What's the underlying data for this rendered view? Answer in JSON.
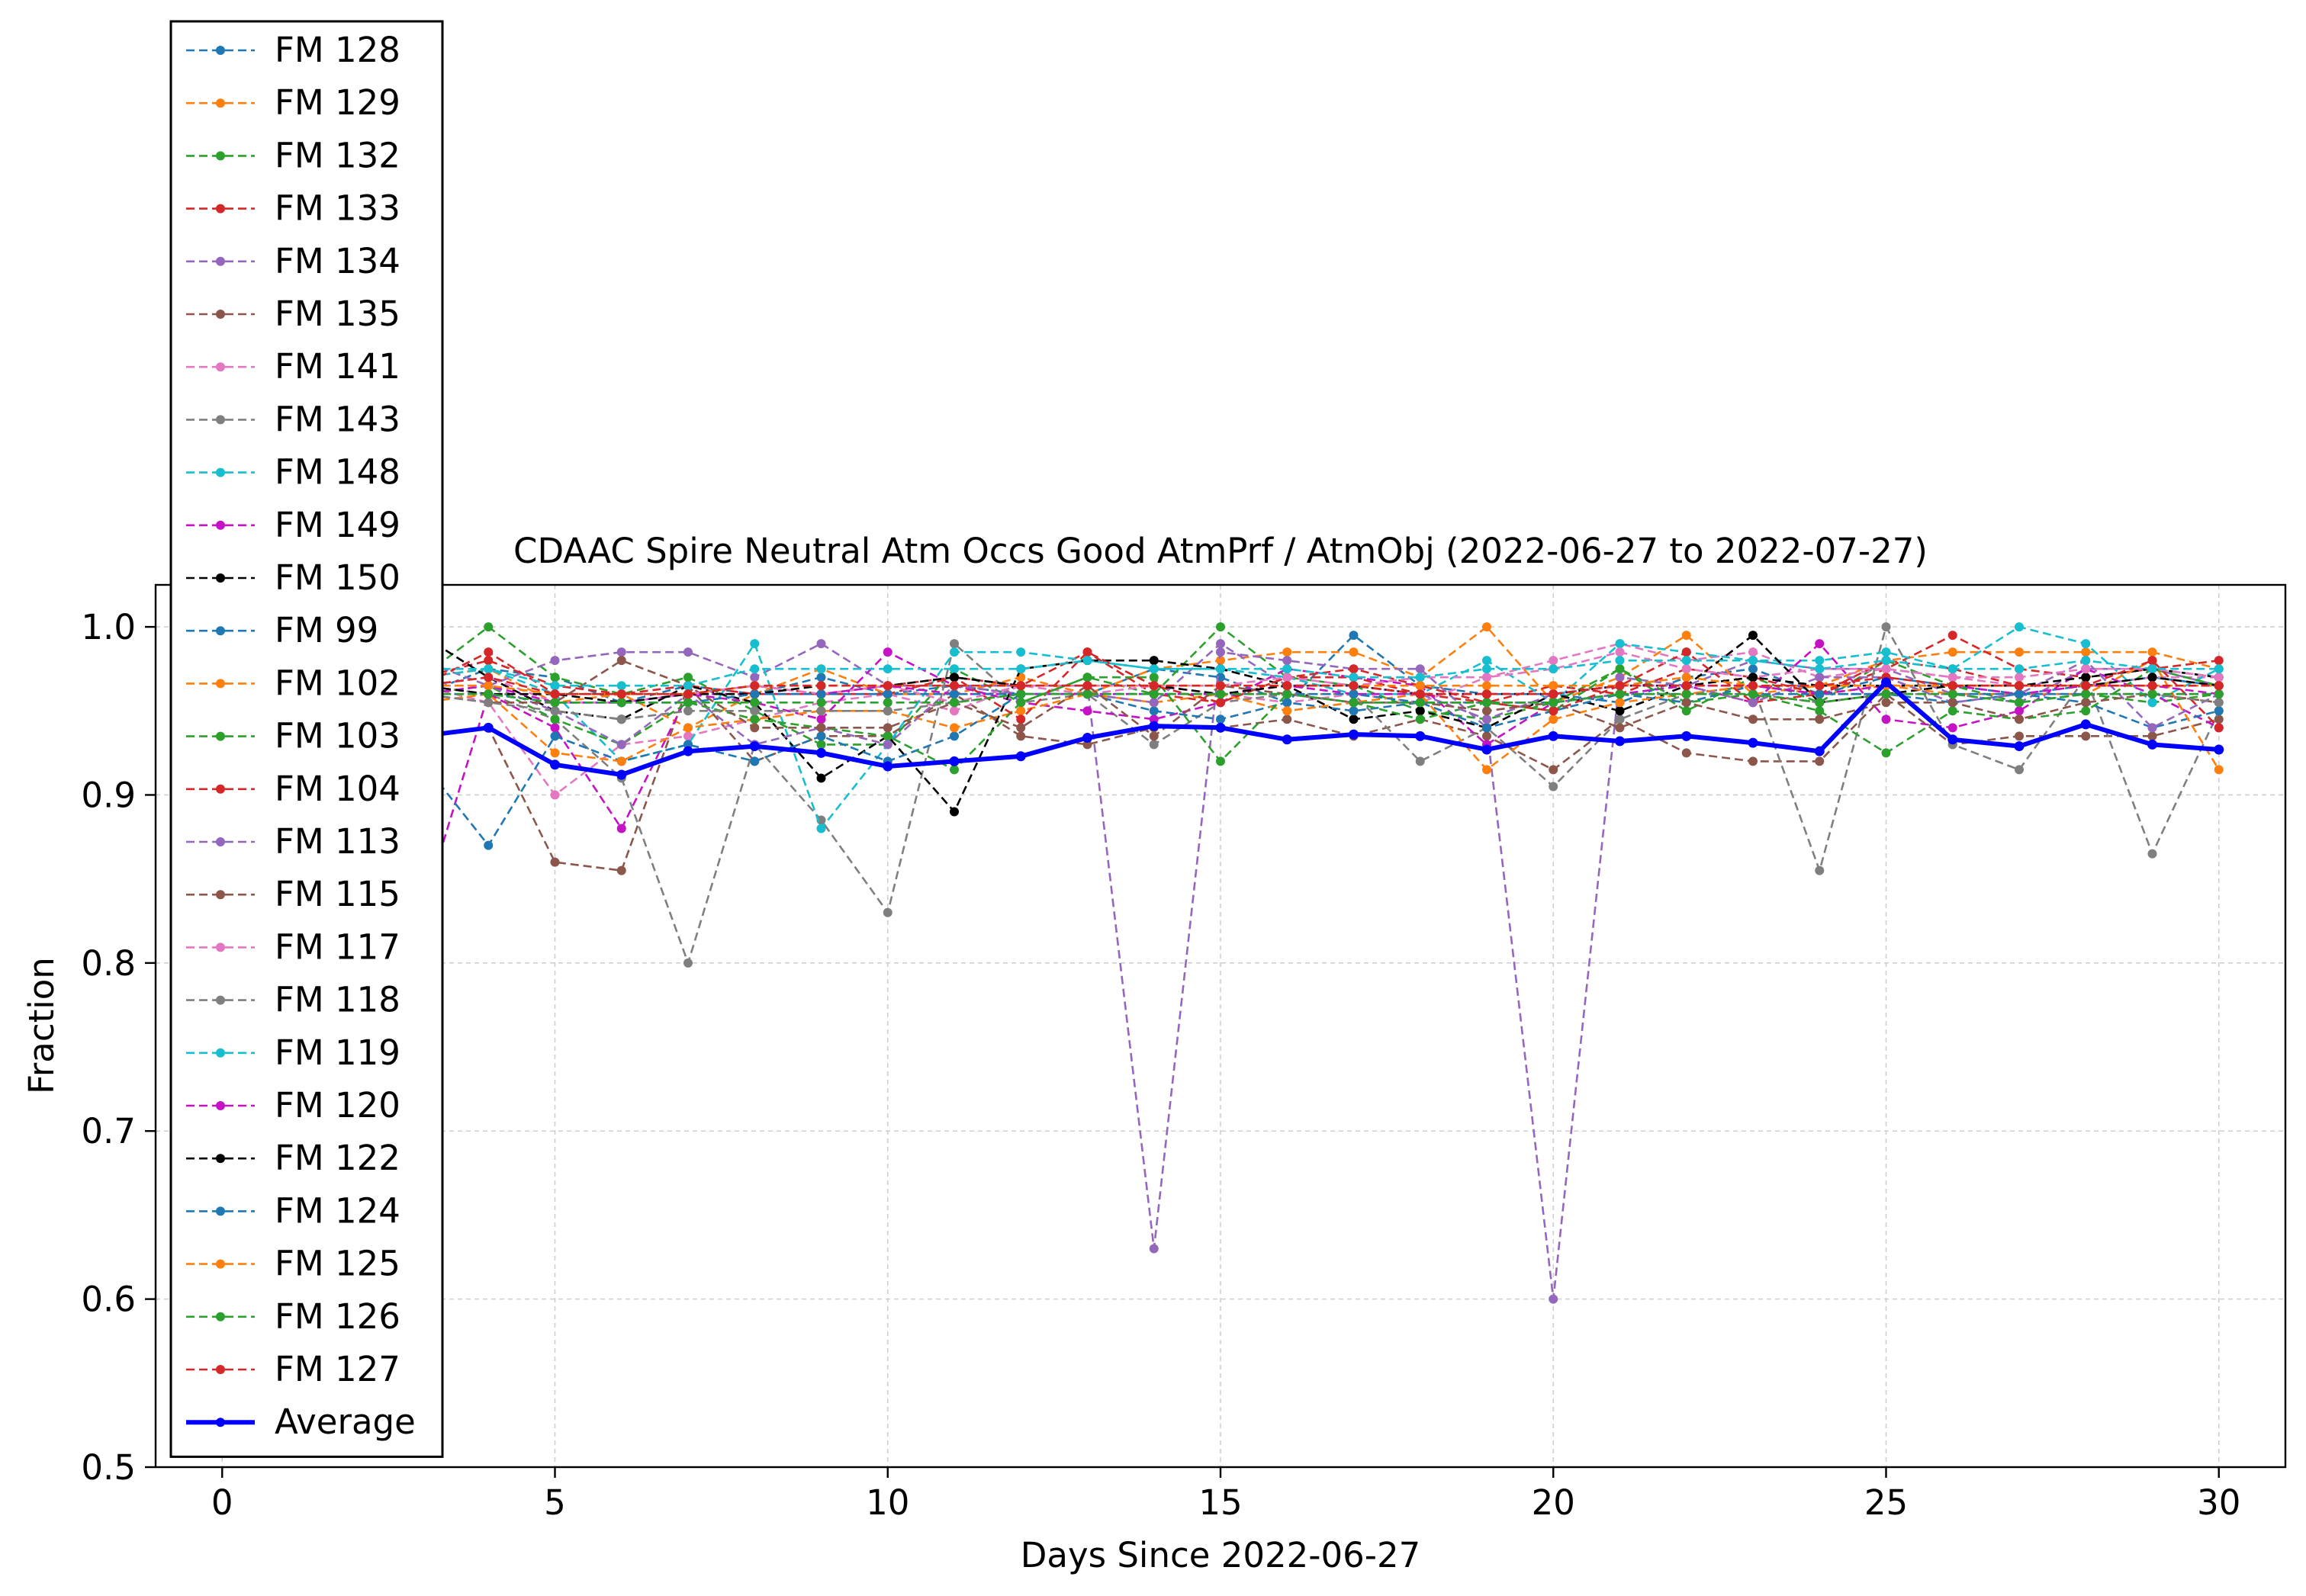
{
  "chart_data": {
    "type": "line",
    "title": "CDAAC Spire Neutral Atm Occs Good AtmPrf / AtmObj (2022-06-27 to 2022-07-27)",
    "xlabel": "Days Since 2022-06-27",
    "ylabel": "Fraction",
    "xlim": [
      -1,
      31
    ],
    "ylim": [
      0.5,
      1.025
    ],
    "xticks": [
      0,
      5,
      10,
      15,
      20,
      25,
      30
    ],
    "xtick_labels": [
      "0",
      "5",
      "10",
      "15",
      "20",
      "25",
      "30"
    ],
    "yticks": [
      0.5,
      0.6,
      0.7,
      0.8,
      0.9,
      1.0
    ],
    "ytick_labels": [
      "0.5",
      "0.6",
      "0.7",
      "0.8",
      "0.9",
      "1.0"
    ],
    "grid": true,
    "legend_position": "upper-left",
    "x": [
      0,
      1,
      2,
      3,
      4,
      5,
      6,
      7,
      8,
      9,
      10,
      11,
      12,
      13,
      14,
      15,
      16,
      17,
      18,
      19,
      20,
      21,
      22,
      23,
      24,
      25,
      26,
      27,
      28,
      29,
      30
    ],
    "series": [
      {
        "name": "FM 128",
        "color": "#1f77b4",
        "style": "dashed",
        "values": [
          0.965,
          0.97,
          0.97,
          0.96,
          0.975,
          0.97,
          0.955,
          0.965,
          0.96,
          0.97,
          0.96,
          0.965,
          0.96,
          0.96,
          0.975,
          0.97,
          0.955,
          0.995,
          0.965,
          0.96,
          0.96,
          0.955,
          0.97,
          0.975,
          0.96,
          0.97,
          0.965,
          0.96,
          0.965,
          0.97,
          0.965
        ]
      },
      {
        "name": "FM 129",
        "color": "#ff7f0e",
        "style": "dashed",
        "values": [
          0.97,
          0.97,
          0.975,
          0.97,
          0.975,
          0.955,
          0.96,
          0.94,
          0.96,
          0.975,
          0.96,
          0.96,
          0.97,
          0.96,
          0.975,
          0.98,
          0.985,
          0.985,
          0.97,
          1.0,
          0.955,
          0.97,
          0.995,
          0.96,
          0.965,
          0.98,
          0.985,
          0.985,
          0.985,
          0.985,
          0.975
        ]
      },
      {
        "name": "FM 132",
        "color": "#2ca02c",
        "style": "dashed",
        "values": [
          0.965,
          0.96,
          0.97,
          0.97,
          1.0,
          0.97,
          0.96,
          0.97,
          0.95,
          0.93,
          0.93,
          0.975,
          0.955,
          0.97,
          0.96,
          1.0,
          0.97,
          0.965,
          0.95,
          0.945,
          0.955,
          0.975,
          0.95,
          0.97,
          0.955,
          0.98,
          0.965,
          0.955,
          0.96,
          0.955,
          0.96
        ]
      },
      {
        "name": "FM 133",
        "color": "#d62728",
        "style": "dashed",
        "values": [
          0.97,
          0.965,
          0.975,
          0.97,
          0.98,
          0.965,
          0.96,
          0.965,
          0.96,
          0.96,
          0.965,
          0.97,
          0.965,
          0.985,
          0.96,
          0.955,
          0.97,
          0.97,
          0.96,
          0.955,
          0.965,
          0.96,
          0.975,
          0.97,
          0.96,
          0.975,
          0.995,
          0.975,
          0.97,
          0.975,
          0.98
        ]
      },
      {
        "name": "FM 134",
        "color": "#9467bd",
        "style": "dashed",
        "values": [
          0.97,
          0.97,
          0.975,
          0.98,
          0.965,
          0.98,
          0.985,
          0.985,
          0.97,
          0.99,
          0.965,
          0.965,
          0.965,
          0.965,
          0.63,
          0.985,
          0.98,
          0.975,
          0.975,
          0.94,
          0.6,
          0.97,
          0.965,
          0.98,
          0.975,
          0.975,
          0.96,
          0.955,
          0.975,
          0.975,
          0.965
        ]
      },
      {
        "name": "FM 135",
        "color": "#8c564b",
        "style": "dashed",
        "values": [
          0.95,
          0.93,
          0.93,
          0.935,
          0.94,
          0.86,
          0.855,
          0.965,
          0.92,
          0.935,
          0.935,
          0.96,
          0.935,
          0.93,
          0.94,
          0.94,
          0.945,
          0.935,
          0.945,
          0.935,
          0.915,
          0.945,
          0.925,
          0.92,
          0.92,
          0.96,
          0.93,
          0.935,
          0.935,
          0.935,
          0.945
        ]
      },
      {
        "name": "FM 141",
        "color": "#e377c2",
        "style": "dashed",
        "values": [
          0.96,
          0.96,
          0.965,
          0.965,
          0.955,
          0.9,
          0.93,
          0.935,
          0.945,
          0.955,
          0.96,
          0.95,
          0.965,
          0.96,
          0.965,
          0.96,
          0.955,
          0.96,
          0.955,
          0.97,
          0.98,
          0.99,
          0.98,
          0.985,
          0.97,
          0.975,
          0.97,
          0.965,
          0.965,
          0.97,
          0.97
        ]
      },
      {
        "name": "FM 143",
        "color": "#7f7f7f",
        "style": "dashed",
        "values": [
          0.96,
          0.955,
          0.96,
          0.965,
          0.96,
          0.945,
          0.91,
          0.8,
          0.93,
          0.885,
          0.83,
          0.99,
          0.955,
          0.96,
          0.93,
          0.955,
          0.96,
          0.96,
          0.92,
          0.94,
          0.905,
          0.945,
          0.96,
          0.965,
          0.855,
          1.0,
          0.93,
          0.915,
          0.97,
          0.865,
          0.95
        ]
      },
      {
        "name": "FM 148",
        "color": "#17becf",
        "style": "dashed",
        "values": [
          0.965,
          0.965,
          0.97,
          0.97,
          0.975,
          0.96,
          0.92,
          0.93,
          0.99,
          0.88,
          0.93,
          0.985,
          0.985,
          0.98,
          0.975,
          0.975,
          0.97,
          0.96,
          0.96,
          0.98,
          0.955,
          0.99,
          0.985,
          0.98,
          0.98,
          0.985,
          0.975,
          1.0,
          0.99,
          0.955,
          0.975
        ]
      },
      {
        "name": "FM 149",
        "color": "#c512c5",
        "style": "dashed",
        "values": [
          0.9,
          0.88,
          0.87,
          0.83,
          0.96,
          0.94,
          0.88,
          0.96,
          0.955,
          0.945,
          0.985,
          0.965,
          0.955,
          0.95,
          0.945,
          0.955,
          0.975,
          0.97,
          0.965,
          0.93,
          0.955,
          0.96,
          0.965,
          0.955,
          0.99,
          0.945,
          0.94,
          0.95,
          0.975,
          0.96,
          0.94
        ]
      },
      {
        "name": "FM 150",
        "color": "#000000",
        "style": "dashed",
        "values": [
          0.97,
          0.985,
          0.99,
          0.995,
          0.97,
          0.95,
          0.945,
          0.965,
          0.955,
          0.91,
          0.935,
          0.89,
          0.975,
          0.98,
          0.98,
          0.975,
          0.965,
          0.945,
          0.95,
          0.94,
          0.96,
          0.95,
          0.965,
          0.995,
          0.955,
          0.96,
          0.965,
          0.965,
          0.97,
          0.975,
          0.97
        ]
      },
      {
        "name": "FM 99",
        "color": "#1f77b4",
        "style": "dashed",
        "values": [
          0.95,
          0.94,
          0.93,
          0.92,
          0.87,
          0.935,
          0.92,
          0.93,
          0.92,
          0.935,
          0.92,
          0.935,
          0.96,
          0.96,
          0.95,
          0.945,
          0.955,
          0.95,
          0.955,
          0.94,
          0.95,
          0.96,
          0.955,
          0.965,
          0.96,
          0.96,
          0.955,
          0.96,
          0.955,
          0.94,
          0.95
        ]
      },
      {
        "name": "FM 102",
        "color": "#ff7f0e",
        "style": "dashed",
        "values": [
          0.955,
          0.96,
          0.96,
          0.955,
          0.96,
          0.925,
          0.92,
          0.94,
          0.945,
          0.95,
          0.95,
          0.94,
          0.95,
          0.96,
          0.955,
          0.96,
          0.95,
          0.955,
          0.96,
          0.915,
          0.945,
          0.955,
          0.96,
          0.965,
          0.96,
          0.965,
          0.96,
          0.96,
          0.96,
          0.98,
          0.915
        ]
      },
      {
        "name": "FM 103",
        "color": "#2ca02c",
        "style": "dashed",
        "values": [
          0.955,
          0.955,
          0.96,
          0.96,
          0.965,
          0.945,
          0.93,
          0.955,
          0.945,
          0.94,
          0.935,
          0.915,
          0.955,
          0.97,
          0.97,
          0.92,
          0.96,
          0.955,
          0.945,
          0.955,
          0.95,
          0.975,
          0.955,
          0.96,
          0.95,
          0.925,
          0.95,
          0.945,
          0.95,
          0.975,
          0.965
        ]
      },
      {
        "name": "FM 104",
        "color": "#d62728",
        "style": "dashed",
        "values": [
          0.96,
          0.965,
          0.97,
          0.965,
          0.985,
          0.96,
          0.96,
          0.96,
          0.965,
          0.96,
          0.96,
          0.97,
          0.945,
          0.985,
          0.965,
          0.955,
          0.97,
          0.975,
          0.965,
          0.955,
          0.95,
          0.965,
          0.985,
          0.955,
          0.96,
          0.98,
          0.975,
          0.965,
          0.965,
          0.98,
          0.94
        ]
      },
      {
        "name": "FM 113",
        "color": "#9467bd",
        "style": "dashed",
        "values": [
          0.96,
          0.96,
          0.965,
          0.965,
          0.965,
          0.95,
          0.93,
          0.96,
          0.93,
          0.94,
          0.93,
          0.965,
          0.96,
          0.96,
          0.955,
          0.99,
          0.965,
          0.965,
          0.96,
          0.945,
          0.96,
          0.965,
          0.965,
          0.955,
          0.97,
          0.97,
          0.955,
          0.96,
          0.98,
          0.94,
          0.96
        ]
      },
      {
        "name": "FM 115",
        "color": "#8c564b",
        "style": "dashed",
        "values": [
          0.96,
          0.96,
          0.965,
          0.96,
          0.955,
          0.955,
          0.98,
          0.965,
          0.94,
          0.94,
          0.94,
          0.955,
          0.94,
          0.965,
          0.935,
          0.965,
          0.96,
          0.955,
          0.955,
          0.95,
          0.955,
          0.94,
          0.955,
          0.945,
          0.945,
          0.955,
          0.955,
          0.945,
          0.955,
          0.96,
          0.955
        ]
      },
      {
        "name": "FM 117",
        "color": "#e377c2",
        "style": "dashed",
        "values": [
          0.965,
          0.965,
          0.97,
          0.965,
          0.97,
          0.955,
          0.955,
          0.96,
          0.965,
          0.96,
          0.965,
          0.955,
          0.965,
          0.965,
          0.965,
          0.965,
          0.97,
          0.965,
          0.97,
          0.97,
          0.975,
          0.985,
          0.975,
          0.97,
          0.975,
          0.975,
          0.97,
          0.97,
          0.975,
          0.975,
          0.97
        ]
      },
      {
        "name": "FM 118",
        "color": "#7f7f7f",
        "style": "dashed",
        "values": [
          0.955,
          0.955,
          0.96,
          0.96,
          0.955,
          0.95,
          0.945,
          0.95,
          0.95,
          0.95,
          0.95,
          0.955,
          0.96,
          0.96,
          0.96,
          0.96,
          0.96,
          0.955,
          0.955,
          0.955,
          0.955,
          0.96,
          0.96,
          0.96,
          0.955,
          0.96,
          0.96,
          0.96,
          0.96,
          0.96,
          0.955
        ]
      },
      {
        "name": "FM 119",
        "color": "#17becf",
        "style": "dashed",
        "values": [
          0.97,
          0.97,
          0.975,
          0.975,
          0.975,
          0.965,
          0.965,
          0.965,
          0.975,
          0.975,
          0.975,
          0.975,
          0.975,
          0.98,
          0.975,
          0.975,
          0.975,
          0.97,
          0.97,
          0.975,
          0.975,
          0.98,
          0.98,
          0.98,
          0.975,
          0.98,
          0.975,
          0.975,
          0.98,
          0.975,
          0.975
        ]
      },
      {
        "name": "FM 120",
        "color": "#c512c5",
        "style": "dashed",
        "values": [
          0.96,
          0.96,
          0.96,
          0.96,
          0.965,
          0.955,
          0.955,
          0.96,
          0.96,
          0.96,
          0.965,
          0.96,
          0.96,
          0.96,
          0.96,
          0.96,
          0.965,
          0.96,
          0.96,
          0.96,
          0.96,
          0.965,
          0.965,
          0.965,
          0.96,
          0.965,
          0.965,
          0.96,
          0.965,
          0.965,
          0.96
        ]
      },
      {
        "name": "FM 122",
        "color": "#000000",
        "style": "dashed",
        "values": [
          0.965,
          0.965,
          0.965,
          0.965,
          0.96,
          0.96,
          0.955,
          0.96,
          0.96,
          0.965,
          0.965,
          0.97,
          0.965,
          0.965,
          0.965,
          0.96,
          0.965,
          0.965,
          0.96,
          0.96,
          0.96,
          0.965,
          0.965,
          0.97,
          0.965,
          0.965,
          0.965,
          0.965,
          0.965,
          0.97,
          0.965
        ]
      },
      {
        "name": "FM 124",
        "color": "#1f77b4",
        "style": "dashed",
        "values": [
          0.96,
          0.96,
          0.965,
          0.96,
          0.96,
          0.955,
          0.955,
          0.955,
          0.96,
          0.96,
          0.96,
          0.96,
          0.96,
          0.96,
          0.96,
          0.96,
          0.96,
          0.96,
          0.955,
          0.955,
          0.955,
          0.96,
          0.96,
          0.96,
          0.96,
          0.96,
          0.96,
          0.96,
          0.96,
          0.96,
          0.96
        ]
      },
      {
        "name": "FM 125",
        "color": "#ff7f0e",
        "style": "dashed",
        "values": [
          0.965,
          0.965,
          0.97,
          0.965,
          0.965,
          0.96,
          0.96,
          0.96,
          0.965,
          0.965,
          0.965,
          0.965,
          0.965,
          0.965,
          0.965,
          0.965,
          0.965,
          0.965,
          0.965,
          0.965,
          0.965,
          0.965,
          0.97,
          0.965,
          0.965,
          0.965,
          0.965,
          0.965,
          0.965,
          0.965,
          0.965
        ]
      },
      {
        "name": "FM 126",
        "color": "#2ca02c",
        "style": "dashed",
        "values": [
          0.96,
          0.96,
          0.96,
          0.96,
          0.96,
          0.955,
          0.955,
          0.955,
          0.955,
          0.955,
          0.955,
          0.955,
          0.96,
          0.96,
          0.96,
          0.96,
          0.96,
          0.955,
          0.955,
          0.955,
          0.955,
          0.96,
          0.96,
          0.96,
          0.955,
          0.96,
          0.96,
          0.955,
          0.96,
          0.96,
          0.96
        ]
      },
      {
        "name": "FM 127",
        "color": "#d62728",
        "style": "dashed",
        "values": [
          0.965,
          0.965,
          0.965,
          0.965,
          0.97,
          0.96,
          0.96,
          0.96,
          0.965,
          0.965,
          0.965,
          0.965,
          0.965,
          0.965,
          0.965,
          0.965,
          0.965,
          0.965,
          0.96,
          0.96,
          0.96,
          0.965,
          0.965,
          0.965,
          0.965,
          0.97,
          0.965,
          0.965,
          0.965,
          0.965,
          0.965
        ]
      },
      {
        "name": "Average",
        "color": "#0000ff",
        "style": "solid",
        "values": [
          0.93,
          0.935,
          0.935,
          0.935,
          0.94,
          0.918,
          0.912,
          0.926,
          0.929,
          0.925,
          0.917,
          0.92,
          0.923,
          0.934,
          0.941,
          0.94,
          0.933,
          0.936,
          0.935,
          0.927,
          0.935,
          0.932,
          0.935,
          0.931,
          0.926,
          0.967,
          0.933,
          0.929,
          0.942,
          0.93,
          0.927
        ]
      }
    ]
  }
}
